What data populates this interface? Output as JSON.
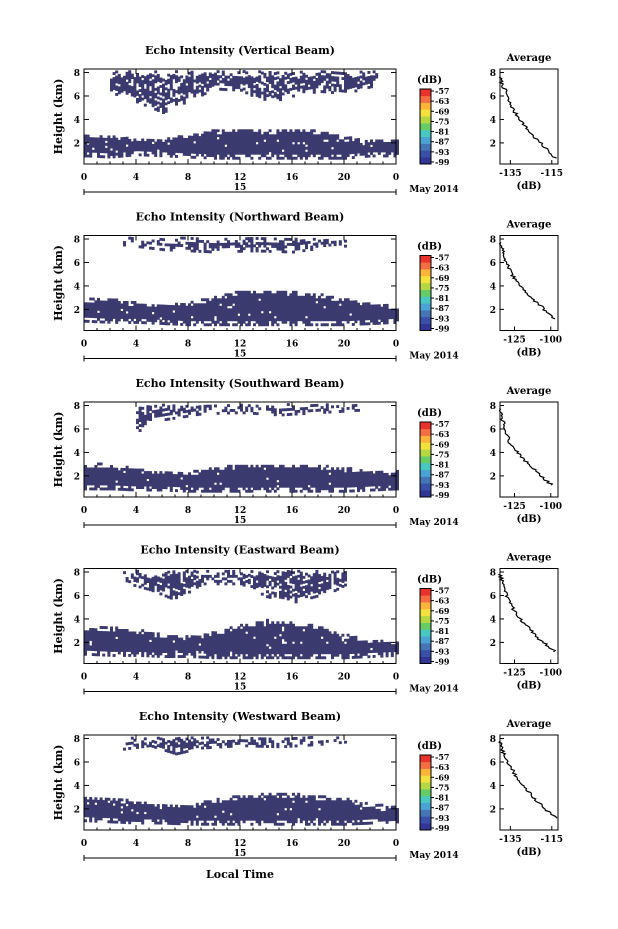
{
  "figure": {
    "x_axis_title": "Local Time",
    "date_label": "May 2014",
    "day_label": "15",
    "colorbar_unit": "(dB)",
    "colorbar_ticks": [
      "-57",
      "-63",
      "-69",
      "-75",
      "-81",
      "-87",
      "-93",
      "-99"
    ],
    "colormap": [
      "#313695",
      "#3a4fa8",
      "#4575b4",
      "#4ba3d3",
      "#48c8c0",
      "#66cc66",
      "#b5d842",
      "#f3e23e",
      "#fdb438",
      "#f46d43",
      "#e8322c"
    ],
    "echo_color": "#3b3b70",
    "avg_title": "Average",
    "avg_xlabel": "(dB)"
  },
  "chart_data": [
    {
      "type": "heatmap",
      "title": "Echo Intensity (Vertical Beam)",
      "ylabel": "Height (km)",
      "xlabel": "Local Time",
      "x_ticks": [
        "0",
        "4",
        "8",
        "12",
        "16",
        "20",
        "0"
      ],
      "y_ticks": [
        "2",
        "4",
        "6",
        "8"
      ],
      "xlim": [
        0,
        24
      ],
      "ylim": [
        0.2,
        8.3
      ],
      "colorbar": {
        "label": "(dB)",
        "range": [
          -99,
          -57
        ]
      },
      "echo_layers": [
        {
          "name": "",
          "x": [
            0,
            2,
            4,
            6,
            8,
            10,
            12,
            14,
            16,
            18,
            20,
            22,
            24
          ],
          "bottom": [
            0.8,
            0.7,
            0.9,
            0.8,
            0.7,
            0.6,
            0.6,
            0.6,
            0.6,
            0.6,
            0.6,
            0.8,
            0.8
          ],
          "top": [
            2.6,
            2.6,
            2.3,
            2.3,
            2.6,
            3.0,
            3.1,
            3.0,
            3.1,
            3.0,
            2.4,
            2.2,
            2.2
          ]
        },
        {
          "name": "",
          "x": [
            2,
            4,
            6,
            8,
            10,
            12,
            14,
            16,
            18,
            20,
            22,
            22.5
          ],
          "bottom": [
            6.2,
            5.4,
            4.5,
            5.5,
            6.5,
            6.4,
            5.3,
            5.9,
            6.3,
            6.1,
            6.7,
            7.2
          ],
          "top": [
            8.0,
            8.0,
            8.0,
            8.0,
            8.0,
            8.0,
            8.0,
            8.0,
            8.0,
            8.0,
            8.0,
            8.0
          ]
        }
      ],
      "average": {
        "x_ticks": [
          "-135",
          "-115"
        ],
        "xlim": [
          -140,
          -112
        ],
        "ylim": [
          0.2,
          8.3
        ],
        "y_ticks": [
          "2",
          "4",
          "6",
          "8"
        ],
        "x": [
          -140,
          -139,
          -137,
          -136,
          -134,
          -133,
          -131,
          -129,
          -127,
          -125,
          -123,
          -121,
          -119,
          -117,
          -115,
          -113
        ],
        "y": [
          7.6,
          7.0,
          6.3,
          5.6,
          5.0,
          4.6,
          4.2,
          3.7,
          3.2,
          2.8,
          2.4,
          2.1,
          1.7,
          1.4,
          1.0,
          0.7
        ]
      }
    },
    {
      "type": "heatmap",
      "title": "Echo Intensity (Northward Beam)",
      "ylabel": "Height (km)",
      "xlabel": "Local Time",
      "x_ticks": [
        "0",
        "4",
        "8",
        "12",
        "16",
        "20",
        "0"
      ],
      "y_ticks": [
        "2",
        "4",
        "6",
        "8"
      ],
      "xlim": [
        0,
        24
      ],
      "ylim": [
        0.2,
        8.3
      ],
      "colorbar": {
        "label": "(dB)",
        "range": [
          -99,
          -57
        ]
      },
      "echo_layers": [
        {
          "name": "",
          "x": [
            0,
            2,
            4,
            6,
            8,
            10,
            12,
            14,
            16,
            18,
            20,
            22,
            24
          ],
          "bottom": [
            0.9,
            0.8,
            0.8,
            0.7,
            0.6,
            0.6,
            0.6,
            0.6,
            0.6,
            0.6,
            0.6,
            0.7,
            0.8
          ],
          "top": [
            2.8,
            2.8,
            2.5,
            2.3,
            2.5,
            3.0,
            3.5,
            3.6,
            3.4,
            3.2,
            2.8,
            2.4,
            2.2
          ]
        },
        {
          "name": "",
          "x": [
            3,
            6,
            10,
            13,
            16,
            18,
            20
          ],
          "bottom": [
            7.4,
            7.0,
            6.8,
            6.9,
            6.8,
            7.1,
            7.3
          ],
          "top": [
            8.0,
            8.0,
            8.0,
            8.0,
            8.0,
            8.0,
            8.0
          ]
        }
      ],
      "average": {
        "x_ticks": [
          "-125",
          "-100"
        ],
        "xlim": [
          -135,
          -95
        ],
        "ylim": [
          0.2,
          8.3
        ],
        "y_ticks": [
          "2",
          "4",
          "6",
          "8"
        ],
        "x": [
          -135,
          -133,
          -131,
          -129,
          -126,
          -124,
          -121,
          -118,
          -115,
          -112,
          -109,
          -106,
          -103,
          -100,
          -97
        ],
        "y": [
          7.7,
          7.0,
          6.2,
          5.5,
          4.8,
          4.4,
          4.0,
          3.6,
          3.2,
          2.8,
          2.5,
          2.2,
          1.8,
          1.5,
          1.2
        ]
      }
    },
    {
      "type": "heatmap",
      "title": "Echo Intensity (Southward Beam)",
      "ylabel": "Height (km)",
      "xlabel": "Local Time",
      "x_ticks": [
        "0",
        "4",
        "8",
        "12",
        "16",
        "20",
        "0"
      ],
      "y_ticks": [
        "2",
        "4",
        "6",
        "8"
      ],
      "xlim": [
        0,
        24
      ],
      "ylim": [
        0.2,
        8.3
      ],
      "colorbar": {
        "label": "(dB)",
        "range": [
          -99,
          -57
        ]
      },
      "echo_layers": [
        {
          "name": "",
          "x": [
            0,
            2,
            4,
            6,
            8,
            10,
            12,
            14,
            16,
            18,
            20,
            22,
            24
          ],
          "bottom": [
            0.8,
            0.8,
            0.7,
            0.7,
            0.6,
            0.6,
            0.6,
            0.6,
            0.6,
            0.6,
            0.6,
            0.7,
            0.8
          ],
          "top": [
            3.0,
            2.9,
            2.5,
            2.3,
            2.3,
            2.6,
            2.9,
            2.9,
            2.9,
            2.8,
            2.6,
            2.4,
            2.3
          ]
        },
        {
          "name": "",
          "x": [
            4,
            5,
            9,
            12,
            15,
            18,
            21
          ],
          "bottom": [
            5.6,
            6.5,
            7.2,
            7.3,
            7.1,
            7.3,
            7.5
          ],
          "top": [
            8.0,
            8.0,
            8.0,
            8.0,
            8.0,
            8.0,
            8.0
          ]
        }
      ],
      "average": {
        "x_ticks": [
          "-125",
          "-100"
        ],
        "xlim": [
          -135,
          -95
        ],
        "ylim": [
          0.2,
          8.3
        ],
        "y_ticks": [
          "2",
          "4",
          "6",
          "8"
        ],
        "x": [
          -135,
          -134,
          -132,
          -130,
          -128,
          -126,
          -123,
          -120,
          -117,
          -114,
          -111,
          -108,
          -105,
          -102,
          -99
        ],
        "y": [
          7.8,
          7.1,
          6.3,
          5.5,
          4.8,
          4.4,
          4.0,
          3.6,
          3.2,
          2.8,
          2.5,
          2.2,
          1.8,
          1.5,
          1.2
        ]
      }
    },
    {
      "type": "heatmap",
      "title": "Echo Intensity (Eastward Beam)",
      "ylabel": "Height (km)",
      "xlabel": "Local Time",
      "x_ticks": [
        "0",
        "4",
        "8",
        "12",
        "16",
        "20",
        "0"
      ],
      "y_ticks": [
        "2",
        "4",
        "6",
        "8"
      ],
      "xlim": [
        0,
        24
      ],
      "ylim": [
        0.2,
        8.3
      ],
      "colorbar": {
        "label": "(dB)",
        "range": [
          -99,
          -57
        ]
      },
      "echo_layers": [
        {
          "name": "",
          "x": [
            0,
            2,
            4,
            6,
            8,
            10,
            12,
            14,
            16,
            18,
            20,
            22,
            24
          ],
          "bottom": [
            0.9,
            0.8,
            0.8,
            0.7,
            0.7,
            0.6,
            0.6,
            0.6,
            0.6,
            0.6,
            0.6,
            0.7,
            0.8
          ],
          "top": [
            3.2,
            3.2,
            3.0,
            2.6,
            2.4,
            2.8,
            3.5,
            3.8,
            3.7,
            3.3,
            2.6,
            2.2,
            2.0
          ]
        },
        {
          "name": "",
          "x": [
            3,
            5,
            7,
            9,
            12,
            14,
            16,
            19,
            20
          ],
          "bottom": [
            7.0,
            6.4,
            5.5,
            6.9,
            6.9,
            5.8,
            5.3,
            6.2,
            6.8
          ],
          "top": [
            8.0,
            8.0,
            8.0,
            8.0,
            8.0,
            8.0,
            8.0,
            8.0,
            8.0
          ]
        }
      ],
      "average": {
        "x_ticks": [
          "-125",
          "-100"
        ],
        "xlim": [
          -135,
          -95
        ],
        "ylim": [
          0.2,
          8.3
        ],
        "y_ticks": [
          "2",
          "4",
          "6",
          "8"
        ],
        "x": [
          -135,
          -133,
          -131,
          -129,
          -126,
          -124,
          -121,
          -118,
          -115,
          -112,
          -109,
          -106,
          -103,
          -100,
          -97
        ],
        "y": [
          7.8,
          7.0,
          6.2,
          5.5,
          4.9,
          4.4,
          4.0,
          3.6,
          3.2,
          2.8,
          2.4,
          2.1,
          1.8,
          1.5,
          1.2
        ]
      }
    },
    {
      "type": "heatmap",
      "title": "Echo Intensity (Westward Beam)",
      "ylabel": "Height (km)",
      "xlabel": "Local Time",
      "x_ticks": [
        "0",
        "4",
        "8",
        "12",
        "16",
        "20",
        "0"
      ],
      "y_ticks": [
        "2",
        "4",
        "6",
        "8"
      ],
      "xlim": [
        0,
        24
      ],
      "ylim": [
        0.2,
        8.3
      ],
      "colorbar": {
        "label": "(dB)",
        "range": [
          -99,
          -57
        ]
      },
      "echo_layers": [
        {
          "name": "",
          "x": [
            0,
            2,
            4,
            6,
            8,
            10,
            12,
            14,
            16,
            18,
            20,
            22,
            24
          ],
          "bottom": [
            0.9,
            0.8,
            0.7,
            0.7,
            0.6,
            0.6,
            0.6,
            0.6,
            0.6,
            0.6,
            0.6,
            0.7,
            0.8
          ],
          "top": [
            2.9,
            2.9,
            2.5,
            2.3,
            2.3,
            2.7,
            3.1,
            3.2,
            3.2,
            3.0,
            2.8,
            2.3,
            2.2
          ]
        },
        {
          "name": "",
          "x": [
            3,
            5,
            7,
            9,
            12,
            15,
            18,
            20
          ],
          "bottom": [
            7.0,
            7.3,
            6.6,
            7.1,
            7.3,
            7.2,
            7.4,
            7.6
          ],
          "top": [
            8.0,
            8.0,
            8.0,
            8.0,
            8.0,
            8.0,
            8.0,
            8.0
          ]
        }
      ],
      "average": {
        "x_ticks": [
          "-135",
          "-115"
        ],
        "xlim": [
          -140,
          -112
        ],
        "ylim": [
          0.2,
          8.3
        ],
        "y_ticks": [
          "2",
          "4",
          "6",
          "8"
        ],
        "x": [
          -140,
          -139,
          -137,
          -135,
          -133,
          -131,
          -129,
          -127,
          -125,
          -123,
          -121,
          -119,
          -117,
          -115,
          -113
        ],
        "y": [
          7.8,
          7.0,
          6.3,
          5.6,
          5.0,
          4.5,
          4.1,
          3.7,
          3.2,
          2.8,
          2.5,
          2.2,
          1.8,
          1.5,
          1.2
        ]
      }
    }
  ]
}
